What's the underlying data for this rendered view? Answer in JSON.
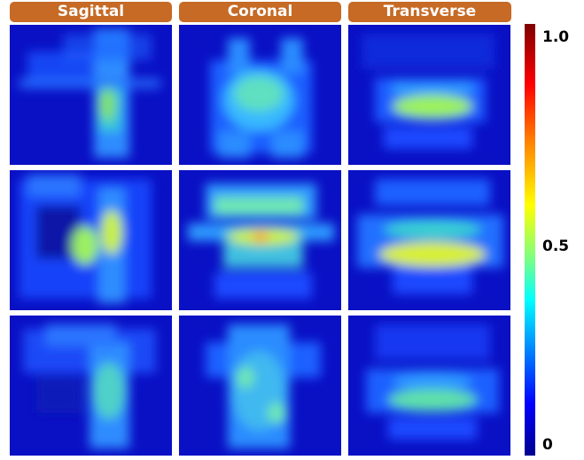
{
  "headers": [
    "Sagittal",
    "Coronal",
    "Transverse"
  ],
  "colorbar": {
    "max_label": "1.0",
    "mid_label": "0.5",
    "min_label": "0"
  },
  "colors": {
    "header_bg": "#c66a25",
    "header_text": "#ffffff",
    "panel_bg": "#0a10c4"
  }
}
